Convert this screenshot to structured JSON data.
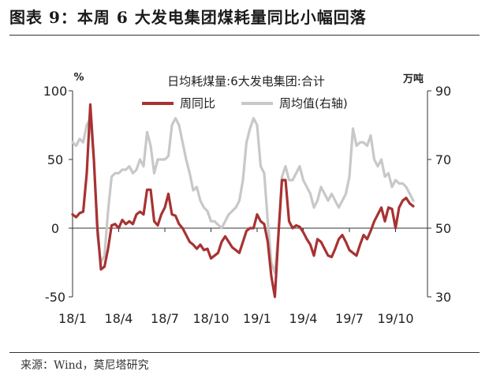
{
  "figure": {
    "title": "图表 9：本周 6 大发电集团煤耗量同比小幅回落",
    "source": "来源：Wind，莫尼塔研究"
  },
  "chart_data": {
    "type": "line",
    "title": "日均耗煤量:6大发电集团:合计",
    "left_axis": {
      "unit": "%",
      "range": [
        -50,
        100
      ],
      "ticks": [
        -50,
        0,
        50,
        100
      ]
    },
    "right_axis": {
      "unit": "万吨",
      "range": [
        30,
        90
      ],
      "ticks": [
        30,
        50,
        70,
        90
      ]
    },
    "x_ticks": [
      {
        "label": "18/1",
        "x": 0
      },
      {
        "label": "18/4",
        "x": 13
      },
      {
        "label": "18/7",
        "x": 26
      },
      {
        "label": "18/10",
        "x": 39
      },
      {
        "label": "19/1",
        "x": 52
      },
      {
        "label": "19/4",
        "x": 65
      },
      {
        "label": "19/7",
        "x": 78
      },
      {
        "label": "19/10",
        "x": 91
      }
    ],
    "x_range": [
      0,
      100
    ],
    "legend_position": "top",
    "series": [
      {
        "name": "周同比",
        "axis": "left",
        "color": "#a83232",
        "points": [
          [
            0,
            10
          ],
          [
            1,
            8
          ],
          [
            2,
            11
          ],
          [
            3,
            12
          ],
          [
            4,
            40
          ],
          [
            5,
            90
          ],
          [
            6,
            50
          ],
          [
            7,
            0
          ],
          [
            8,
            -30
          ],
          [
            9,
            -28
          ],
          [
            10,
            -15
          ],
          [
            11,
            2
          ],
          [
            12,
            3
          ],
          [
            13,
            0
          ],
          [
            14,
            6
          ],
          [
            15,
            3
          ],
          [
            16,
            5
          ],
          [
            17,
            3
          ],
          [
            18,
            10
          ],
          [
            19,
            12
          ],
          [
            20,
            10
          ],
          [
            21,
            28
          ],
          [
            22,
            28
          ],
          [
            23,
            5
          ],
          [
            24,
            2
          ],
          [
            25,
            10
          ],
          [
            26,
            15
          ],
          [
            27,
            25
          ],
          [
            28,
            10
          ],
          [
            29,
            9
          ],
          [
            30,
            3
          ],
          [
            31,
            0
          ],
          [
            32,
            -5
          ],
          [
            33,
            -10
          ],
          [
            34,
            -12
          ],
          [
            35,
            -15
          ],
          [
            36,
            -12
          ],
          [
            37,
            -16
          ],
          [
            38,
            -15
          ],
          [
            39,
            -22
          ],
          [
            40,
            -20
          ],
          [
            41,
            -18
          ],
          [
            42,
            -10
          ],
          [
            43,
            -6
          ],
          [
            44,
            -10
          ],
          [
            45,
            -14
          ],
          [
            46,
            -16
          ],
          [
            47,
            -18
          ],
          [
            48,
            -10
          ],
          [
            49,
            -2
          ],
          [
            50,
            0
          ],
          [
            51,
            0
          ],
          [
            52,
            10
          ],
          [
            53,
            5
          ],
          [
            54,
            3
          ],
          [
            55,
            -10
          ],
          [
            56,
            -35
          ],
          [
            57,
            -50
          ],
          [
            58,
            -5
          ],
          [
            59,
            35
          ],
          [
            60,
            35
          ],
          [
            61,
            5
          ],
          [
            62,
            0
          ],
          [
            63,
            2
          ],
          [
            64,
            1
          ],
          [
            65,
            -3
          ],
          [
            66,
            -8
          ],
          [
            67,
            -12
          ],
          [
            68,
            -20
          ],
          [
            69,
            -8
          ],
          [
            70,
            -10
          ],
          [
            71,
            -15
          ],
          [
            72,
            -20
          ],
          [
            73,
            -21
          ],
          [
            74,
            -15
          ],
          [
            75,
            -8
          ],
          [
            76,
            -5
          ],
          [
            77,
            -10
          ],
          [
            78,
            -16
          ],
          [
            79,
            -18
          ],
          [
            80,
            -20
          ],
          [
            81,
            -12
          ],
          [
            82,
            -5
          ],
          [
            83,
            -8
          ],
          [
            84,
            -2
          ],
          [
            85,
            5
          ],
          [
            86,
            10
          ],
          [
            87,
            15
          ],
          [
            88,
            5
          ],
          [
            89,
            15
          ],
          [
            90,
            14
          ],
          [
            91,
            0
          ],
          [
            92,
            15
          ],
          [
            93,
            20
          ],
          [
            94,
            22
          ],
          [
            95,
            18
          ],
          [
            96,
            16
          ]
        ]
      },
      {
        "name": "周均值(右轴)",
        "axis": "right",
        "color": "#c8c8c8",
        "points": [
          [
            0,
            75
          ],
          [
            1,
            74
          ],
          [
            2,
            76
          ],
          [
            3,
            75
          ],
          [
            4,
            80
          ],
          [
            5,
            82
          ],
          [
            6,
            70
          ],
          [
            7,
            48
          ],
          [
            8,
            40
          ],
          [
            9,
            42
          ],
          [
            10,
            55
          ],
          [
            11,
            65
          ],
          [
            12,
            66
          ],
          [
            13,
            66
          ],
          [
            14,
            67
          ],
          [
            15,
            67
          ],
          [
            16,
            68
          ],
          [
            17,
            66
          ],
          [
            18,
            67
          ],
          [
            19,
            70
          ],
          [
            20,
            68
          ],
          [
            21,
            78
          ],
          [
            22,
            74
          ],
          [
            23,
            66
          ],
          [
            24,
            70
          ],
          [
            25,
            70
          ],
          [
            26,
            70
          ],
          [
            27,
            71
          ],
          [
            28,
            80
          ],
          [
            29,
            82
          ],
          [
            30,
            80
          ],
          [
            31,
            75
          ],
          [
            32,
            70
          ],
          [
            33,
            66
          ],
          [
            34,
            61
          ],
          [
            35,
            62
          ],
          [
            36,
            58
          ],
          [
            37,
            56
          ],
          [
            38,
            55
          ],
          [
            39,
            52
          ],
          [
            40,
            52
          ],
          [
            41,
            51
          ],
          [
            42,
            50
          ],
          [
            43,
            52
          ],
          [
            44,
            54
          ],
          [
            45,
            55
          ],
          [
            46,
            56
          ],
          [
            47,
            58
          ],
          [
            48,
            64
          ],
          [
            49,
            75
          ],
          [
            50,
            79
          ],
          [
            51,
            82
          ],
          [
            52,
            80
          ],
          [
            53,
            68
          ],
          [
            54,
            66
          ],
          [
            55,
            52
          ],
          [
            56,
            40
          ],
          [
            57,
            37
          ],
          [
            58,
            48
          ],
          [
            59,
            65
          ],
          [
            60,
            68
          ],
          [
            61,
            64
          ],
          [
            62,
            64
          ],
          [
            63,
            66
          ],
          [
            64,
            68
          ],
          [
            65,
            64
          ],
          [
            66,
            62
          ],
          [
            67,
            60
          ],
          [
            68,
            56
          ],
          [
            69,
            58
          ],
          [
            70,
            62
          ],
          [
            71,
            60
          ],
          [
            72,
            58
          ],
          [
            73,
            60
          ],
          [
            74,
            58
          ],
          [
            75,
            56
          ],
          [
            76,
            58
          ],
          [
            77,
            60
          ],
          [
            78,
            65
          ],
          [
            79,
            79
          ],
          [
            80,
            74
          ],
          [
            81,
            75
          ],
          [
            82,
            75
          ],
          [
            83,
            74
          ],
          [
            84,
            77
          ],
          [
            85,
            70
          ],
          [
            86,
            68
          ],
          [
            87,
            70
          ],
          [
            88,
            65
          ],
          [
            89,
            66
          ],
          [
            90,
            62
          ],
          [
            91,
            64
          ],
          [
            92,
            63
          ],
          [
            93,
            63
          ],
          [
            94,
            62
          ],
          [
            95,
            60
          ],
          [
            96,
            58
          ]
        ]
      }
    ]
  }
}
